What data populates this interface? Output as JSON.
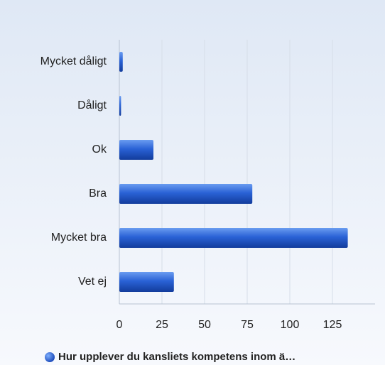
{
  "chart_data": {
    "type": "bar",
    "orientation": "horizontal",
    "categories": [
      "Mycket dåligt",
      "Dåligt",
      "Ok",
      "Bra",
      "Mycket bra",
      "Vet ej"
    ],
    "series": [
      {
        "name": "Hur upplever du kansliets kompetens inom ä…",
        "color": "#1f5bd0",
        "values": [
          2,
          1,
          20,
          78,
          134,
          32
        ]
      }
    ],
    "xlim": [
      0,
      150
    ],
    "xticks": [
      0,
      25,
      50,
      75,
      100,
      125
    ],
    "grid": true
  }
}
